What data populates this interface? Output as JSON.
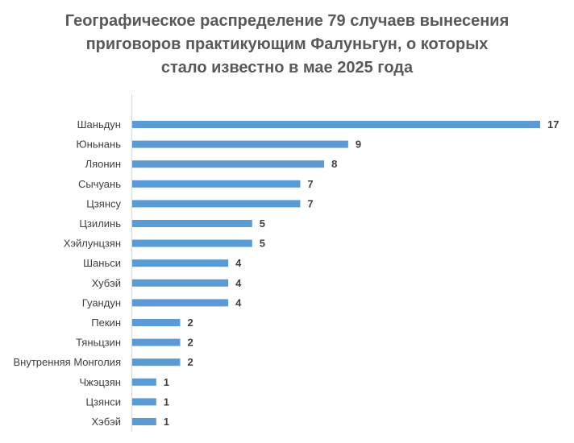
{
  "chart_data": {
    "type": "bar",
    "orientation": "horizontal",
    "title_lines": [
      "Географическое распределение 79 случаев вынесения",
      "приговоров практикующим Фалуньгун, о которых",
      "стало известно в мае 2025 года"
    ],
    "categories": [
      "Шаньдун",
      "Юньнань",
      "Ляонин",
      "Сычуань",
      "Цзянсу",
      "Цзилинь",
      "Хэйлунцзян",
      "Шаньси",
      "Хубэй",
      "Гуандун",
      "Пекин",
      "Тяньцзин",
      "Внутренняя Монголия",
      "Чжэцзян",
      "Цзянси",
      "Хэбэй"
    ],
    "values": [
      17,
      9,
      8,
      7,
      7,
      5,
      5,
      4,
      4,
      4,
      2,
      2,
      2,
      1,
      1,
      1
    ],
    "xlim": [
      0,
      17
    ],
    "bar_color": "#5b9bd5",
    "data_labels": true,
    "grid": false,
    "legend": "none"
  }
}
